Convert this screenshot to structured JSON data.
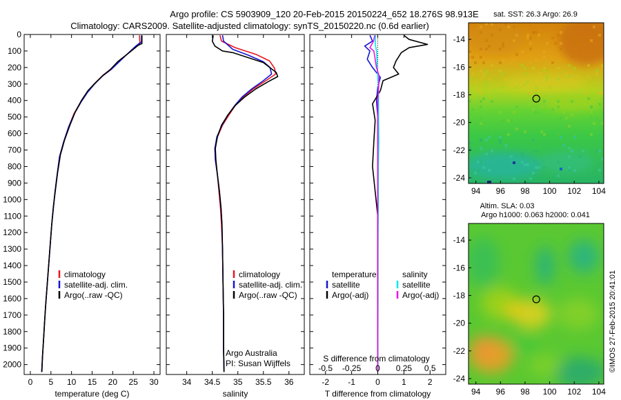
{
  "header": {
    "line1": "Argo profile: CS 5903909_120 20-Feb-2015 20150224_652 18.276S 98.913E",
    "line2": "Climatology: CARS2009. Satellite-adjusted climatology: synTS_20150220.nc (0.6d earlier)"
  },
  "footer_credit": "©IMOS 27-Feb-2015 20:41:01",
  "colors": {
    "climatology": "#e8141e",
    "satellite": "#1414d2",
    "argo": "#000000",
    "satellite_diff_s": "#00e6e6",
    "argo_diff_s": "#e614e6"
  },
  "depth_axis": {
    "ylim": [
      0,
      2060
    ],
    "ticks": [
      0,
      100,
      200,
      300,
      400,
      500,
      600,
      700,
      800,
      900,
      1000,
      1100,
      1200,
      1300,
      1400,
      1500,
      1600,
      1700,
      1800,
      1900,
      2000
    ],
    "inverted": true
  },
  "chart_data": [
    {
      "type": "line",
      "id": "temperature",
      "xlabel": "temperature (deg C)",
      "xlim": [
        -1.5,
        31.5
      ],
      "xticks": [
        0,
        5,
        10,
        15,
        20,
        25,
        30
      ],
      "legend": [
        "climatology",
        "satellite-adj. clim.",
        "Argo(..raw -QC)"
      ],
      "legend_placement": "lower-middle",
      "series": [
        {
          "name": "climatology",
          "color_key": "climatology",
          "points": [
            [
              26.5,
              5
            ],
            [
              26.6,
              50
            ],
            [
              25.2,
              80
            ],
            [
              23.5,
              120
            ],
            [
              21.5,
              160
            ],
            [
              19.5,
              210
            ],
            [
              17.5,
              250
            ],
            [
              15.5,
              300
            ],
            [
              13.8,
              350
            ],
            [
              12.2,
              410
            ],
            [
              10.6,
              480
            ],
            [
              9.3,
              560
            ],
            [
              8.1,
              650
            ],
            [
              7.1,
              740
            ],
            [
              6.5,
              850
            ],
            [
              6.0,
              950
            ],
            [
              5.6,
              1050
            ],
            [
              5.2,
              1150
            ],
            [
              4.9,
              1250
            ],
            [
              4.6,
              1350
            ],
            [
              4.3,
              1450
            ],
            [
              4.0,
              1550
            ],
            [
              3.7,
              1650
            ],
            [
              3.45,
              1750
            ],
            [
              3.2,
              1850
            ],
            [
              2.95,
              1950
            ],
            [
              2.75,
              2045
            ]
          ]
        },
        {
          "name": "satellite-adj. clim.",
          "color_key": "satellite",
          "points": [
            [
              27.0,
              5
            ],
            [
              27.0,
              45
            ],
            [
              25.6,
              70
            ],
            [
              23.9,
              110
            ],
            [
              21.8,
              160
            ],
            [
              19.7,
              210
            ],
            [
              17.6,
              250
            ],
            [
              15.6,
              300
            ],
            [
              13.9,
              350
            ],
            [
              12.3,
              410
            ],
            [
              10.7,
              480
            ],
            [
              9.3,
              560
            ],
            [
              8.1,
              650
            ],
            [
              7.1,
              740
            ],
            [
              6.5,
              850
            ],
            [
              6.0,
              950
            ],
            [
              5.6,
              1050
            ],
            [
              5.2,
              1150
            ],
            [
              4.9,
              1250
            ],
            [
              4.6,
              1350
            ],
            [
              4.3,
              1450
            ],
            [
              4.0,
              1550
            ],
            [
              3.7,
              1650
            ],
            [
              3.45,
              1750
            ],
            [
              3.2,
              1850
            ],
            [
              2.95,
              1950
            ],
            [
              2.75,
              2045
            ]
          ]
        },
        {
          "name": "Argo(..raw -QC)",
          "color_key": "argo",
          "points": [
            [
              27.1,
              5
            ],
            [
              27.1,
              55
            ],
            [
              26.2,
              65
            ],
            [
              25.0,
              90
            ],
            [
              23.5,
              120
            ],
            [
              21.2,
              165
            ],
            [
              19.3,
              215
            ],
            [
              17.8,
              245
            ],
            [
              15.7,
              295
            ],
            [
              14.0,
              340
            ],
            [
              12.4,
              400
            ],
            [
              10.9,
              470
            ],
            [
              9.6,
              550
            ],
            [
              8.3,
              640
            ],
            [
              7.3,
              730
            ],
            [
              6.6,
              840
            ],
            [
              6.1,
              940
            ],
            [
              5.6,
              1040
            ],
            [
              5.2,
              1150
            ],
            [
              4.9,
              1250
            ],
            [
              4.6,
              1350
            ],
            [
              4.3,
              1450
            ],
            [
              4.0,
              1550
            ],
            [
              3.7,
              1650
            ],
            [
              3.45,
              1750
            ],
            [
              3.2,
              1850
            ],
            [
              2.95,
              1950
            ],
            [
              2.8,
              2045
            ]
          ]
        }
      ]
    },
    {
      "type": "line",
      "id": "salinity",
      "xlabel": "salinity",
      "xlim": [
        33.6,
        36.3
      ],
      "xticks": [
        34,
        34.5,
        35,
        35.5,
        36
      ],
      "legend": [
        "climatology",
        "satellite-adj. clim.",
        "Argo(..raw -QC)"
      ],
      "legend_placement": "lower-middle",
      "annotation": [
        "Argo Australia",
        "PI: Susan Wijffels"
      ],
      "series": [
        {
          "name": "climatology",
          "color_key": "climatology",
          "points": [
            [
              34.65,
              5
            ],
            [
              34.68,
              40
            ],
            [
              34.95,
              80
            ],
            [
              35.35,
              120
            ],
            [
              35.62,
              160
            ],
            [
              35.72,
              205
            ],
            [
              35.74,
              240
            ],
            [
              35.55,
              280
            ],
            [
              35.3,
              330
            ],
            [
              35.1,
              380
            ],
            [
              34.95,
              430
            ],
            [
              34.82,
              490
            ],
            [
              34.7,
              550
            ],
            [
              34.6,
              620
            ],
            [
              34.55,
              690
            ],
            [
              34.56,
              760
            ],
            [
              34.6,
              850
            ],
            [
              34.63,
              950
            ],
            [
              34.66,
              1050
            ],
            [
              34.68,
              1150
            ],
            [
              34.7,
              1300
            ],
            [
              34.71,
              1500
            ],
            [
              34.72,
              1700
            ],
            [
              34.72,
              1900
            ],
            [
              34.73,
              2045
            ]
          ]
        },
        {
          "name": "satellite-adj. clim.",
          "color_key": "satellite",
          "points": [
            [
              34.7,
              5
            ],
            [
              34.72,
              40
            ],
            [
              34.9,
              90
            ],
            [
              35.2,
              125
            ],
            [
              35.5,
              165
            ],
            [
              35.63,
              200
            ],
            [
              35.66,
              240
            ],
            [
              35.5,
              280
            ],
            [
              35.27,
              330
            ],
            [
              35.08,
              380
            ],
            [
              34.94,
              430
            ],
            [
              34.8,
              490
            ],
            [
              34.69,
              550
            ],
            [
              34.59,
              620
            ],
            [
              34.55,
              690
            ],
            [
              34.56,
              760
            ],
            [
              34.6,
              850
            ],
            [
              34.64,
              950
            ],
            [
              34.67,
              1050
            ],
            [
              34.69,
              1150
            ],
            [
              34.7,
              1300
            ],
            [
              34.71,
              1500
            ],
            [
              34.72,
              1700
            ],
            [
              34.72,
              1900
            ],
            [
              34.73,
              2045
            ]
          ]
        },
        {
          "name": "Argo(..raw -QC)",
          "color_key": "argo",
          "points": [
            [
              34.52,
              5
            ],
            [
              34.5,
              40
            ],
            [
              34.55,
              70
            ],
            [
              34.7,
              100
            ],
            [
              34.9,
              110
            ],
            [
              35.2,
              140
            ],
            [
              35.5,
              170
            ],
            [
              35.75,
              230
            ],
            [
              35.78,
              255
            ],
            [
              35.6,
              285
            ],
            [
              35.35,
              330
            ],
            [
              35.13,
              380
            ],
            [
              34.95,
              430
            ],
            [
              34.8,
              490
            ],
            [
              34.68,
              550
            ],
            [
              34.6,
              620
            ],
            [
              34.56,
              690
            ],
            [
              34.57,
              760
            ],
            [
              34.6,
              850
            ],
            [
              34.64,
              950
            ],
            [
              34.67,
              1050
            ],
            [
              34.69,
              1150
            ],
            [
              34.7,
              1300
            ],
            [
              34.71,
              1500
            ],
            [
              34.72,
              1700
            ],
            [
              34.72,
              1900
            ],
            [
              34.73,
              2045
            ]
          ]
        }
      ]
    },
    {
      "type": "line",
      "id": "differences",
      "xlabel": "T difference from climatology",
      "xlabel_top": "S difference from climatology",
      "xlim": [
        -2.6,
        2.6
      ],
      "xticks": [
        -2,
        -1,
        0,
        1,
        2
      ],
      "xticks_top": [
        -0.5,
        -0.25,
        0,
        0.25,
        0.5
      ],
      "xticks_top_labels": [
        "-0.5",
        "-0.25",
        "0",
        "0.25",
        "0.5"
      ],
      "legend_left_title": "temperature",
      "legend_right_title": "salinity",
      "legend_left": [
        "satellite",
        "Argo(-adj)"
      ],
      "legend_right": [
        "satellite",
        "Argo(-adj)"
      ],
      "series": [
        {
          "name": "T satellite",
          "color_key": "satellite",
          "points": [
            [
              -0.3,
              5
            ],
            [
              -0.2,
              40
            ],
            [
              -0.5,
              70
            ],
            [
              -0.3,
              100
            ],
            [
              -0.4,
              150
            ],
            [
              -0.2,
              200
            ],
            [
              0.1,
              260
            ],
            [
              0.0,
              320
            ],
            [
              -0.05,
              400
            ],
            [
              0.0,
              500
            ],
            [
              0.0,
              700
            ],
            [
              0.0,
              900
            ],
            [
              0.0,
              1200
            ],
            [
              0.0,
              1500
            ],
            [
              0.0,
              2045
            ]
          ]
        },
        {
          "name": "T Argo(-adj)",
          "color_key": "argo",
          "points": [
            [
              1.0,
              5
            ],
            [
              1.2,
              30
            ],
            [
              1.9,
              60
            ],
            [
              1.2,
              80
            ],
            [
              0.9,
              110
            ],
            [
              0.7,
              160
            ],
            [
              0.6,
              200
            ],
            [
              0.8,
              240
            ],
            [
              0.2,
              280
            ],
            [
              0.1,
              340
            ],
            [
              -0.2,
              420
            ],
            [
              -0.1,
              520
            ],
            [
              -0.15,
              650
            ],
            [
              -0.2,
              800
            ],
            [
              -0.1,
              950
            ],
            [
              0.0,
              1100
            ],
            [
              0.0,
              1300
            ],
            [
              0.0,
              1600
            ],
            [
              0.0,
              2045
            ]
          ]
        },
        {
          "name": "S satellite",
          "color_key": "satellite_diff_s",
          "points": [
            [
              -0.08,
              5
            ],
            [
              -0.1,
              50
            ],
            [
              -0.05,
              100
            ],
            [
              -0.03,
              150
            ],
            [
              -0.02,
              200
            ],
            [
              0.0,
              250
            ],
            [
              0.02,
              300
            ],
            [
              0.03,
              400
            ],
            [
              0.03,
              500
            ],
            [
              0.04,
              650
            ],
            [
              0.02,
              800
            ],
            [
              0.02,
              1000
            ],
            [
              0.01,
              1300
            ],
            [
              0.01,
              1600
            ],
            [
              0.0,
              2045
            ]
          ]
        },
        {
          "name": "S Argo(-adj)",
          "color_key": "argo_diff_s",
          "points": [
            [
              -0.12,
              5
            ],
            [
              -0.16,
              40
            ],
            [
              -0.3,
              80
            ],
            [
              -0.15,
              100
            ],
            [
              -0.1,
              150
            ],
            [
              -0.05,
              200
            ],
            [
              0.05,
              250
            ],
            [
              0.04,
              300
            ],
            [
              0.0,
              400
            ],
            [
              0.0,
              500
            ],
            [
              0.0,
              700
            ],
            [
              0.0,
              900
            ],
            [
              0.0,
              1200
            ],
            [
              0.0,
              2045
            ]
          ]
        }
      ]
    },
    {
      "type": "heatmap",
      "id": "sst_map",
      "title": "sat. SST: 26.3 Argo: 26.9",
      "xlim": [
        93.4,
        104.4
      ],
      "ylim": [
        -24.4,
        -12.8
      ],
      "xticks": [
        94,
        96,
        98,
        100,
        102,
        104
      ],
      "yticks": [
        -14,
        -16,
        -18,
        -20,
        -22,
        -24
      ],
      "marker": {
        "lon": 98.913,
        "lat": -18.276
      }
    },
    {
      "type": "heatmap",
      "id": "sla_map",
      "title": "Altim. SLA: 0.03",
      "subtitle": "Argo h1000: 0.063 h2000: 0.041",
      "xlim": [
        93.4,
        104.4
      ],
      "ylim": [
        -24.4,
        -12.8
      ],
      "xticks": [
        94,
        96,
        98,
        100,
        102,
        104
      ],
      "yticks": [
        -14,
        -16,
        -18,
        -20,
        -22,
        -24
      ],
      "marker": {
        "lon": 98.913,
        "lat": -18.276
      }
    }
  ]
}
